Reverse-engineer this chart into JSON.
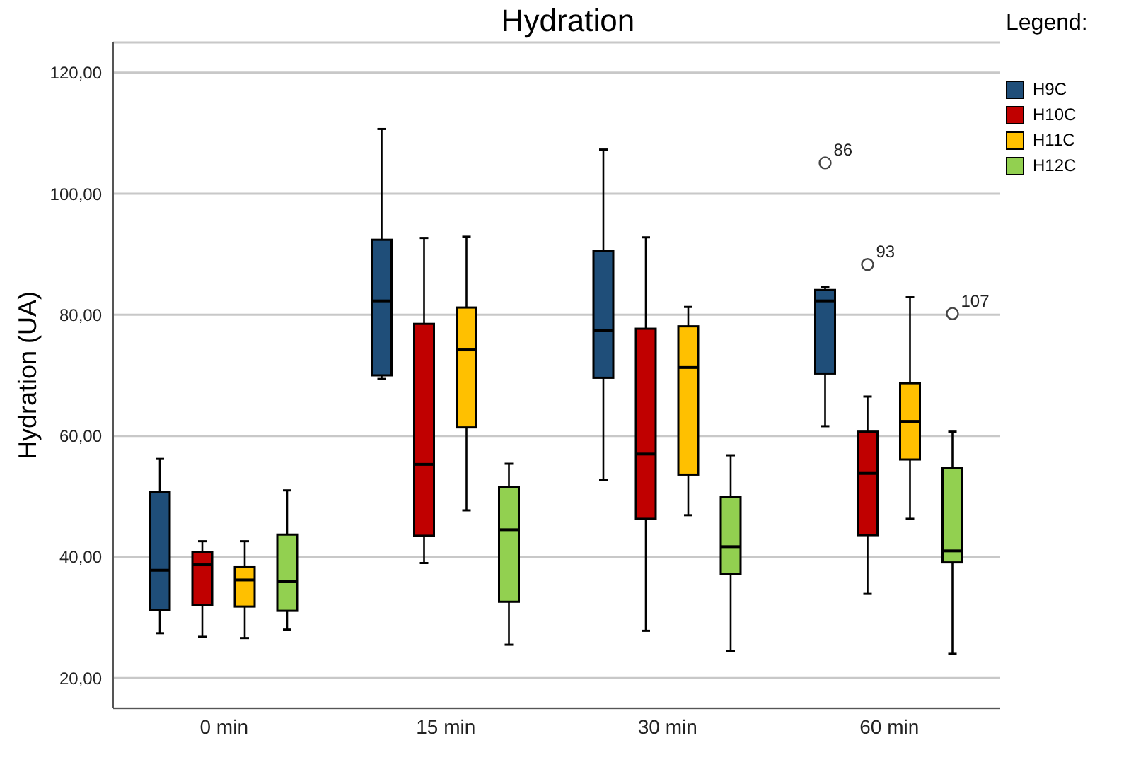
{
  "chart_data": {
    "type": "box",
    "title": "Hydration",
    "ylabel": "Hydration (UA)",
    "legend_title": "Legend:",
    "categories": [
      "0 min",
      "15 min",
      "30 min",
      "60 min"
    ],
    "series": [
      {
        "name": "H9C",
        "color": "#1f4e79",
        "boxes": [
          {
            "low": 27.4,
            "q1": 31.2,
            "median": 37.8,
            "q3": 50.7,
            "high": 56.2
          },
          {
            "low": 69.4,
            "q1": 70.0,
            "median": 82.3,
            "q3": 92.4,
            "high": 110.7
          },
          {
            "low": 52.7,
            "q1": 69.6,
            "median": 77.4,
            "q3": 90.5,
            "high": 107.3
          },
          {
            "low": 61.6,
            "q1": 70.3,
            "median": 82.3,
            "q3": 84.1,
            "high": 84.6,
            "outliers": [
              105.1
            ]
          }
        ]
      },
      {
        "name": "H10C",
        "color": "#c00000",
        "boxes": [
          {
            "low": 26.8,
            "q1": 32.1,
            "median": 38.7,
            "q3": 40.8,
            "high": 42.6
          },
          {
            "low": 39.0,
            "q1": 43.5,
            "median": 55.3,
            "q3": 78.5,
            "high": 92.7
          },
          {
            "low": 27.8,
            "q1": 46.3,
            "median": 57.0,
            "q3": 77.7,
            "high": 92.8
          },
          {
            "low": 33.9,
            "q1": 43.6,
            "median": 53.8,
            "q3": 60.7,
            "high": 66.5,
            "outliers": [
              88.3
            ]
          }
        ]
      },
      {
        "name": "H11C",
        "color": "#ffc000",
        "boxes": [
          {
            "low": 26.6,
            "q1": 31.8,
            "median": 36.2,
            "q3": 38.3,
            "high": 42.6
          },
          {
            "low": 47.7,
            "q1": 61.4,
            "median": 74.2,
            "q3": 81.2,
            "high": 92.9
          },
          {
            "low": 46.9,
            "q1": 53.6,
            "median": 71.3,
            "q3": 78.1,
            "high": 81.3
          },
          {
            "low": 46.3,
            "q1": 56.1,
            "median": 62.4,
            "q3": 68.7,
            "high": 82.9
          }
        ]
      },
      {
        "name": "H12C",
        "color": "#92d050",
        "boxes": [
          {
            "low": 28.0,
            "q1": 31.1,
            "median": 35.9,
            "q3": 43.7,
            "high": 51.0
          },
          {
            "low": 25.5,
            "q1": 32.6,
            "median": 44.5,
            "q3": 51.6,
            "high": 55.4
          },
          {
            "low": 24.5,
            "q1": 37.2,
            "median": 41.7,
            "q3": 49.9,
            "high": 56.8
          },
          {
            "low": 24.0,
            "q1": 39.1,
            "median": 41.0,
            "q3": 54.7,
            "high": 60.7,
            "outliers": [
              80.2
            ]
          }
        ]
      }
    ],
    "annotations": [
      "86",
      "93",
      "107"
    ],
    "ylim": [
      15,
      125
    ],
    "yticks": [
      {
        "value": 20,
        "label": "20,00"
      },
      {
        "value": 40,
        "label": "40,00"
      },
      {
        "value": 60,
        "label": "60,00"
      },
      {
        "value": 80,
        "label": "80,00"
      },
      {
        "value": 100,
        "label": "100,00"
      },
      {
        "value": 120,
        "label": "120,00"
      }
    ],
    "grid": "y",
    "legend": "right"
  }
}
